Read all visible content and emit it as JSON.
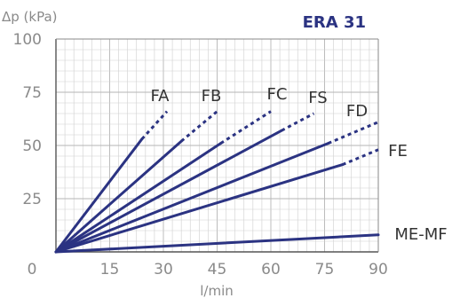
{
  "chart_data": {
    "type": "line",
    "title": "ERA 31",
    "ylabel": "Δp (kPa)",
    "xlabel": "l/min",
    "xlim": [
      0,
      90
    ],
    "ylim": [
      0,
      100
    ],
    "xticks": [
      "0",
      "15",
      "30",
      "45",
      "60",
      "75",
      "90"
    ],
    "yticks": [
      "0",
      "25",
      "50",
      "75",
      "100"
    ],
    "grid": true,
    "line_color": "#2b3382",
    "series": [
      {
        "name": "FA",
        "solid": [
          [
            0,
            0
          ],
          [
            24,
            53
          ]
        ],
        "dashed": [
          [
            24,
            53
          ],
          [
            31,
            66
          ]
        ]
      },
      {
        "name": "FB",
        "solid": [
          [
            0,
            0
          ],
          [
            35,
            52
          ]
        ],
        "dashed": [
          [
            35,
            52
          ],
          [
            45,
            66
          ]
        ]
      },
      {
        "name": "FC",
        "solid": [
          [
            0,
            0
          ],
          [
            46,
            51
          ]
        ],
        "dashed": [
          [
            46,
            51
          ],
          [
            60,
            66
          ]
        ]
      },
      {
        "name": "FS",
        "solid": [
          [
            0,
            0
          ],
          [
            63,
            57
          ]
        ],
        "dashed": [
          [
            63,
            57
          ],
          [
            72,
            65
          ]
        ]
      },
      {
        "name": "FD",
        "solid": [
          [
            0,
            0
          ],
          [
            76,
            51
          ]
        ],
        "dashed": [
          [
            76,
            51
          ],
          [
            90,
            61
          ]
        ]
      },
      {
        "name": "FE",
        "solid": [
          [
            0,
            0
          ],
          [
            80,
            41
          ]
        ],
        "dashed": [
          [
            80,
            41
          ],
          [
            90,
            48
          ]
        ]
      },
      {
        "name": "ME-MF",
        "solid": [
          [
            0,
            0
          ],
          [
            90,
            8
          ]
        ],
        "dashed": []
      }
    ]
  }
}
